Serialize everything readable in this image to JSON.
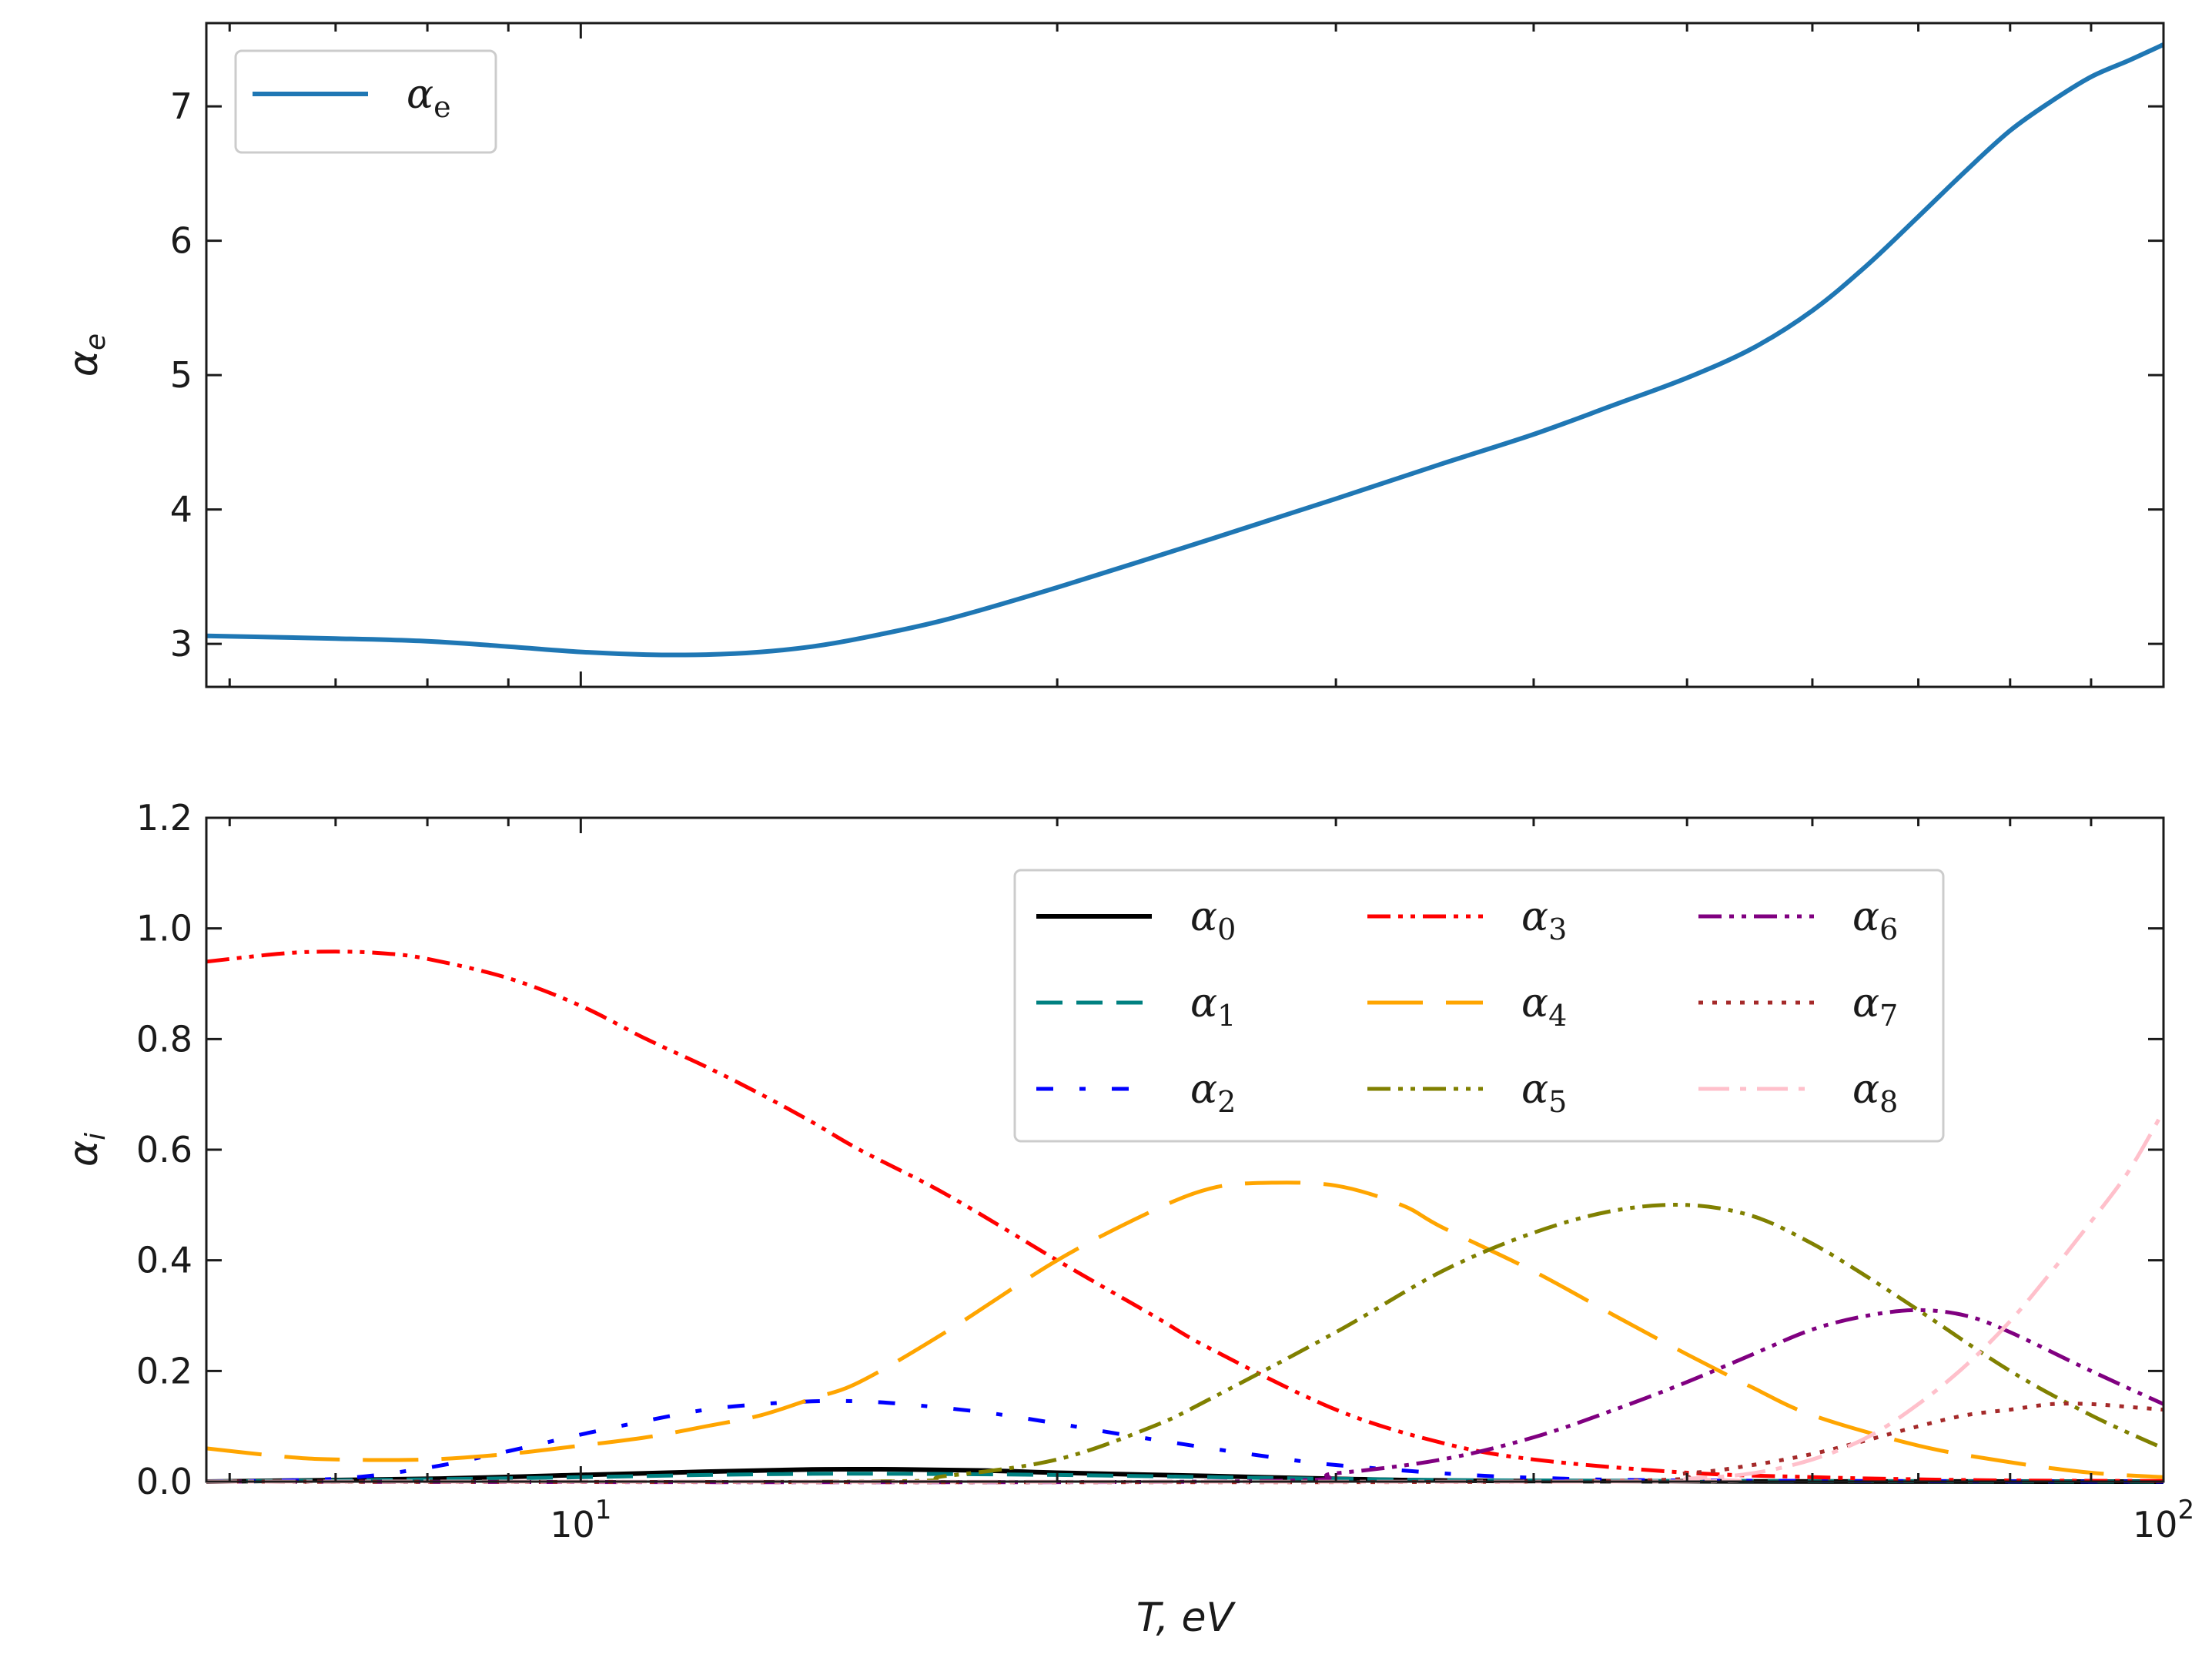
{
  "colors": {
    "alpha_e": "#1f77b4",
    "alpha_0": "#000000",
    "alpha_1": "#008080",
    "alpha_2": "#0000ff",
    "alpha_3": "#ff0000",
    "alpha_4": "#ffa500",
    "alpha_5": "#808000",
    "alpha_6": "#800080",
    "alpha_7": "#a52a2a",
    "alpha_8": "#ffc0cb"
  },
  "chart_data": [
    {
      "type": "line",
      "panel": "top",
      "xscale": "log",
      "xlim": [
        5.8,
        100
      ],
      "ylim": [
        2.68,
        7.62
      ],
      "xlabel": "",
      "ylabel": "αe",
      "yticks": [
        "3",
        "4",
        "5",
        "6",
        "7"
      ],
      "yticks_values": [
        3,
        4,
        5,
        6,
        7
      ],
      "legend": {
        "location": "upper left"
      },
      "series": [
        {
          "name": "αe",
          "legend_label": "α",
          "legend_sub": "e",
          "style": "solid",
          "x": [
            5.8,
            7,
            8,
            9,
            10,
            11,
            12,
            13,
            14,
            15,
            17,
            20,
            25,
            30,
            35,
            40,
            45,
            50,
            55,
            60,
            65,
            70,
            75,
            80,
            85,
            90,
            95,
            100
          ],
          "y": [
            3.06,
            3.04,
            3.02,
            2.98,
            2.94,
            2.92,
            2.92,
            2.94,
            2.98,
            3.04,
            3.18,
            3.42,
            3.78,
            4.08,
            4.34,
            4.56,
            4.78,
            4.98,
            5.2,
            5.48,
            5.82,
            6.18,
            6.52,
            6.82,
            7.04,
            7.22,
            7.34,
            7.46
          ]
        }
      ]
    },
    {
      "type": "line",
      "panel": "bottom",
      "xscale": "log",
      "xlim": [
        5.8,
        100
      ],
      "ylim": [
        0,
        1.2
      ],
      "xlabel": "T, eV",
      "ylabel": "αi",
      "xticks": [
        {
          "value": 10,
          "base": "10",
          "exp": "1"
        },
        {
          "value": 100,
          "base": "10",
          "exp": "2"
        }
      ],
      "yticks": [
        "0.0",
        "0.2",
        "0.4",
        "0.6",
        "0.8",
        "1.0",
        "1.2"
      ],
      "yticks_values": [
        0,
        0.2,
        0.4,
        0.6,
        0.8,
        1.0,
        1.2
      ],
      "legend": {
        "location": "upper right",
        "columns": 3
      },
      "series": [
        {
          "name": "α0",
          "legend_label": "α",
          "legend_sub": "0",
          "style": "solid",
          "x": [
            5.8,
            8,
            10,
            12,
            14,
            16,
            18,
            20,
            25,
            30,
            40,
            100
          ],
          "y": [
            0.0,
            0.005,
            0.012,
            0.018,
            0.022,
            0.022,
            0.02,
            0.016,
            0.01,
            0.005,
            0.001,
            0.0
          ]
        },
        {
          "name": "α1",
          "legend_label": "α",
          "legend_sub": "1",
          "style": "dashed",
          "x": [
            5.8,
            8,
            10,
            12,
            14,
            16,
            20,
            25,
            30,
            40,
            100
          ],
          "y": [
            0.0,
            0.004,
            0.008,
            0.012,
            0.014,
            0.014,
            0.012,
            0.008,
            0.005,
            0.002,
            0.0
          ]
        },
        {
          "name": "α2",
          "legend_label": "α",
          "legend_sub": "2",
          "style": "dashdot-sparse",
          "x": [
            5.8,
            7,
            8,
            9,
            10,
            11,
            12,
            13,
            14,
            15,
            16,
            18,
            20,
            22,
            25,
            28,
            30,
            35,
            40,
            50,
            100
          ],
          "y": [
            0.0,
            0.005,
            0.025,
            0.055,
            0.085,
            0.11,
            0.13,
            0.14,
            0.145,
            0.145,
            0.14,
            0.125,
            0.105,
            0.085,
            0.06,
            0.04,
            0.03,
            0.015,
            0.007,
            0.002,
            0.0
          ]
        },
        {
          "name": "α3",
          "legend_label": "α",
          "legend_sub": "3",
          "style": "dashdotdot",
          "x": [
            5.8,
            6.5,
            7,
            7.5,
            8,
            9,
            10,
            11,
            12,
            13,
            14,
            15,
            17,
            20,
            23,
            25,
            30,
            35,
            40,
            50,
            60,
            70,
            80,
            100
          ],
          "y": [
            0.94,
            0.955,
            0.958,
            0.955,
            0.945,
            0.91,
            0.86,
            0.8,
            0.75,
            0.7,
            0.65,
            0.6,
            0.52,
            0.4,
            0.3,
            0.24,
            0.13,
            0.07,
            0.04,
            0.016,
            0.008,
            0.004,
            0.002,
            0.001
          ]
        },
        {
          "name": "α4",
          "legend_label": "α",
          "legend_sub": "4",
          "style": "longdash",
          "x": [
            5.8,
            6.5,
            7,
            8,
            9,
            10,
            11,
            12,
            13,
            14,
            15,
            17,
            20,
            23,
            25,
            27,
            30,
            33,
            35,
            40,
            45,
            50,
            55,
            60,
            70,
            80,
            90,
            100
          ],
          "y": [
            0.06,
            0.045,
            0.04,
            0.04,
            0.05,
            0.065,
            0.08,
            0.1,
            0.12,
            0.15,
            0.18,
            0.27,
            0.4,
            0.49,
            0.53,
            0.54,
            0.535,
            0.5,
            0.46,
            0.38,
            0.3,
            0.23,
            0.17,
            0.12,
            0.065,
            0.035,
            0.016,
            0.008
          ]
        },
        {
          "name": "α5",
          "legend_label": "α",
          "legend_sub": "5",
          "style": "dashdotdot",
          "x": [
            5.8,
            15,
            17,
            20,
            23,
            25,
            30,
            35,
            40,
            45,
            50,
            55,
            60,
            65,
            70,
            80,
            90,
            100
          ],
          "y": [
            0.0,
            0.0,
            0.01,
            0.04,
            0.1,
            0.15,
            0.27,
            0.38,
            0.45,
            0.49,
            0.5,
            0.48,
            0.43,
            0.37,
            0.31,
            0.2,
            0.12,
            0.06
          ]
        },
        {
          "name": "α6",
          "legend_label": "α",
          "legend_sub": "6",
          "style": "dashdotdot",
          "x": [
            5.8,
            25,
            30,
            35,
            40,
            45,
            50,
            55,
            60,
            65,
            70,
            75,
            80,
            90,
            100
          ],
          "y": [
            0.0,
            0.0,
            0.015,
            0.04,
            0.08,
            0.13,
            0.18,
            0.23,
            0.275,
            0.3,
            0.31,
            0.3,
            0.27,
            0.2,
            0.14
          ]
        },
        {
          "name": "α7",
          "legend_label": "α",
          "legend_sub": "7",
          "style": "dotted",
          "x": [
            5.8,
            40,
            50,
            55,
            60,
            65,
            70,
            75,
            80,
            85,
            90,
            95,
            100
          ],
          "y": [
            0.0,
            0.0,
            0.015,
            0.03,
            0.05,
            0.075,
            0.1,
            0.12,
            0.13,
            0.14,
            0.14,
            0.135,
            0.13
          ]
        },
        {
          "name": "α8",
          "legend_label": "α",
          "legend_sub": "8",
          "style": "dashdot",
          "x": [
            5.8,
            45,
            50,
            55,
            60,
            65,
            70,
            75,
            80,
            85,
            90,
            95,
            100
          ],
          "y": [
            0.0,
            0.0,
            0.005,
            0.015,
            0.04,
            0.08,
            0.14,
            0.21,
            0.29,
            0.38,
            0.47,
            0.56,
            0.67
          ]
        }
      ]
    }
  ]
}
